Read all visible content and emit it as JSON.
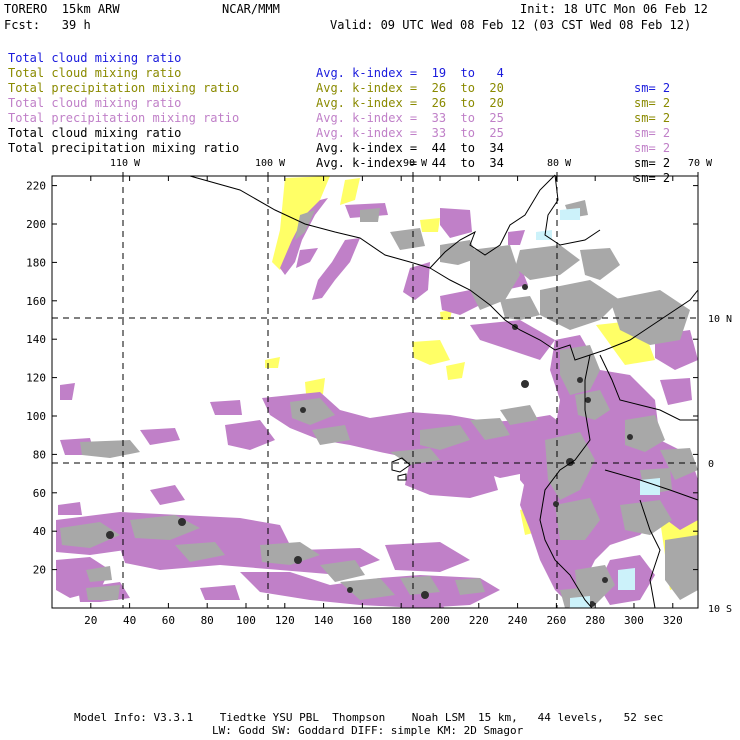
{
  "header": {
    "model": "TORERO  15km ARW",
    "org": "NCAR/MMM",
    "init": "Init: 18 UTC Mon 06 Feb 12",
    "fcst": "Fcst:   39 h",
    "valid": "Valid: 09 UTC Wed 08 Feb 12 (03 CST Wed 08 Feb 12)"
  },
  "legend": [
    {
      "field": "Total cloud mixing ratio",
      "kindex": "Avg. k-index =  19  to   4",
      "sm": "sm= 2",
      "color": "#1a1adc"
    },
    {
      "field": "Total cloud mixing ratio",
      "kindex": "Avg. k-index =  26  to  20",
      "sm": "sm= 2",
      "color": "#8a8a00"
    },
    {
      "field": "Total precipitation mixing ratio",
      "kindex": "Avg. k-index =  26  to  20",
      "sm": "sm= 2",
      "color": "#8a8a00"
    },
    {
      "field": "Total cloud mixing ratio",
      "kindex": "Avg. k-index =  33  to  25",
      "sm": "sm= 2",
      "color": "#c080c8"
    },
    {
      "field": "Total precipitation mixing ratio",
      "kindex": "Avg. k-index =  33  to  25",
      "sm": "sm= 2",
      "color": "#c080c8"
    },
    {
      "field": "Total cloud mixing ratio",
      "kindex": "Avg. k-index =  44  to  34",
      "sm": "sm= 2",
      "color": "#000000"
    },
    {
      "field": "Total precipitation mixing ratio",
      "kindex": "Avg. k-index =  44  to  34",
      "sm": "sm= 2",
      "color": "#000000"
    }
  ],
  "footer": {
    "line1": "Model Info: V3.3.1    Tiedtke YSU PBL  Thompson    Noah LSM  15 km,   44 levels,   52 sec",
    "line2": "LW: Godd SW: Goddard DIFF: simple KM: 2D Smagor"
  },
  "chart_data": {
    "type": "heatmap",
    "x_ticks": [
      20,
      40,
      60,
      80,
      100,
      120,
      140,
      160,
      180,
      200,
      220,
      240,
      260,
      280,
      300,
      320
    ],
    "y_ticks": [
      20,
      40,
      60,
      80,
      100,
      120,
      140,
      160,
      180,
      200,
      220
    ],
    "xlim": [
      0,
      333
    ],
    "ylim": [
      0,
      225
    ],
    "lon_labels": [
      "110 W",
      "100 W",
      "90 W",
      "80 W",
      "70 W"
    ],
    "lat_labels": [
      "10 N",
      "0",
      "10 S"
    ],
    "colors": {
      "yellow": "#ffff66",
      "purple": "#c080c8",
      "gray": "#a0a0a0",
      "dark": "#303030",
      "cyan": "#ccf2fa"
    }
  }
}
